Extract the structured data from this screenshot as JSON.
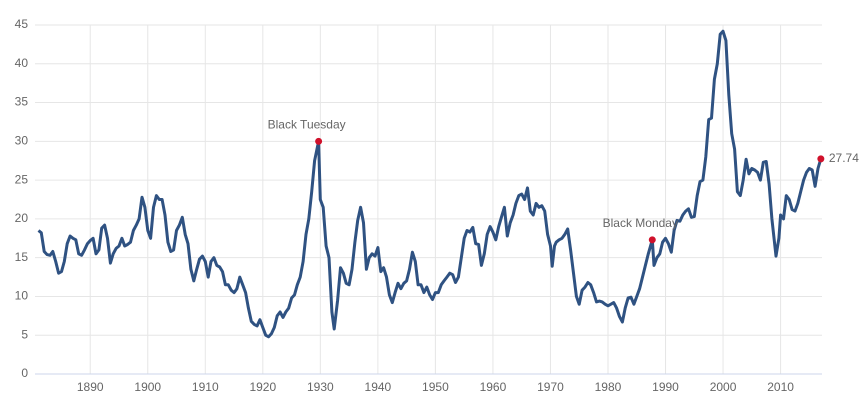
{
  "chart_data": {
    "type": "line",
    "color": "#2f5282",
    "marker_color": "#d0112b",
    "grid": true,
    "xlim": [
      1880.4,
      2017.2
    ],
    "ylim": [
      0,
      45
    ],
    "xticks": [
      1890,
      1900,
      1910,
      1920,
      1930,
      1940,
      1950,
      1960,
      1970,
      1980,
      1990,
      2000,
      2010
    ],
    "yticks": [
      0,
      5,
      10,
      15,
      20,
      25,
      30,
      35,
      40,
      45
    ],
    "x": [
      1881,
      1881.5,
      1882,
      1882.5,
      1883,
      1883.5,
      1884,
      1884.5,
      1885,
      1885.5,
      1886,
      1886.5,
      1887,
      1887.5,
      1888,
      1888.5,
      1889,
      1889.5,
      1890,
      1890.5,
      1891,
      1891.5,
      1892,
      1892.5,
      1893,
      1893.5,
      1894,
      1894.5,
      1895,
      1895.5,
      1896,
      1896.5,
      1897,
      1897.5,
      1898,
      1898.5,
      1899,
      1899.5,
      1900,
      1900.5,
      1901,
      1901.5,
      1902,
      1902.5,
      1903,
      1903.5,
      1904,
      1904.5,
      1905,
      1905.5,
      1906,
      1906.5,
      1907,
      1907.5,
      1908,
      1908.5,
      1909,
      1909.5,
      1910,
      1910.5,
      1911,
      1911.5,
      1912,
      1912.5,
      1913,
      1913.5,
      1914,
      1914.5,
      1915,
      1915.5,
      1916,
      1916.5,
      1917,
      1917.5,
      1918,
      1918.5,
      1919,
      1919.5,
      1920,
      1920.5,
      1921,
      1921.5,
      1922,
      1922.5,
      1923,
      1923.5,
      1924,
      1924.5,
      1925,
      1925.5,
      1926,
      1926.5,
      1927,
      1927.5,
      1928,
      1928.5,
      1929,
      1929.7,
      1930,
      1930.5,
      1931,
      1931.5,
      1932,
      1932.4,
      1933,
      1933.5,
      1934,
      1934.5,
      1935,
      1935.5,
      1936,
      1936.5,
      1937,
      1937.5,
      1938,
      1938.5,
      1939,
      1939.5,
      1940,
      1940.5,
      1941,
      1941.5,
      1942,
      1942.5,
      1943,
      1943.5,
      1944,
      1944.5,
      1945,
      1945.5,
      1946,
      1946.5,
      1947,
      1947.5,
      1948,
      1948.5,
      1949,
      1949.5,
      1950,
      1950.5,
      1951,
      1951.5,
      1952,
      1952.5,
      1953,
      1953.5,
      1954,
      1954.5,
      1955,
      1955.5,
      1956,
      1956.5,
      1957,
      1957.5,
      1958,
      1958.5,
      1959,
      1959.5,
      1960,
      1960.5,
      1961,
      1961.5,
      1962,
      1962.5,
      1963,
      1963.5,
      1964,
      1964.5,
      1965,
      1965.5,
      1966,
      1966.5,
      1967,
      1967.5,
      1968,
      1968.5,
      1969,
      1969.5,
      1970,
      1970.3,
      1970.7,
      1971,
      1971.5,
      1972,
      1972.5,
      1973,
      1973.5,
      1974,
      1974.5,
      1975,
      1975.5,
      1976,
      1976.5,
      1977,
      1977.5,
      1978,
      1978.5,
      1979,
      1979.5,
      1980,
      1980.5,
      1981,
      1981.5,
      1982,
      1982.5,
      1983,
      1983.5,
      1984,
      1984.5,
      1985,
      1985.5,
      1986,
      1986.5,
      1987,
      1987.7,
      1988,
      1988.5,
      1989,
      1989.5,
      1990,
      1990.5,
      1991,
      1991.5,
      1992,
      1992.5,
      1993,
      1993.5,
      1994,
      1994.5,
      1995,
      1995.5,
      1996,
      1996.5,
      1997,
      1997.5,
      1998,
      1998.5,
      1999,
      1999.5,
      2000,
      2000.5,
      2001,
      2001.5,
      2002,
      2002.5,
      2003,
      2003.5,
      2004,
      2004.5,
      2005,
      2005.5,
      2006,
      2006.5,
      2007,
      2007.5,
      2008,
      2008.5,
      2009.2,
      2009.7,
      2010,
      2010.5,
      2011,
      2011.5,
      2012,
      2012.5,
      2013,
      2013.5,
      2014,
      2014.5,
      2015,
      2015.5,
      2016,
      2016.5,
      2017
    ],
    "values": [
      18.5,
      18.2,
      15.8,
      15.4,
      15.3,
      15.8,
      14.5,
      13.0,
      13.2,
      14.5,
      16.8,
      17.8,
      17.5,
      17.3,
      15.5,
      15.3,
      16.0,
      16.8,
      17.2,
      17.5,
      15.5,
      16.0,
      18.8,
      19.2,
      17.5,
      14.3,
      15.5,
      16.2,
      16.5,
      17.5,
      16.5,
      16.7,
      17.0,
      18.5,
      19.2,
      20.0,
      22.8,
      21.5,
      18.5,
      17.5,
      21.5,
      23.0,
      22.5,
      22.5,
      20.5,
      17.0,
      15.8,
      16.0,
      18.5,
      19.2,
      20.2,
      18.0,
      16.8,
      13.5,
      12.0,
      13.5,
      14.8,
      15.2,
      14.5,
      12.5,
      14.5,
      15.0,
      14.0,
      13.8,
      13.2,
      11.5,
      11.5,
      10.8,
      10.5,
      11.0,
      12.5,
      11.5,
      10.5,
      8.5,
      6.8,
      6.4,
      6.2,
      7.0,
      6.0,
      5.0,
      4.8,
      5.2,
      6.0,
      7.5,
      8.0,
      7.3,
      8.0,
      8.5,
      9.8,
      10.2,
      11.5,
      12.5,
      14.5,
      18.0,
      20.0,
      23.5,
      27.5,
      30.0,
      22.5,
      21.5,
      16.5,
      15.0,
      8.0,
      5.8,
      9.5,
      13.7,
      13.0,
      11.7,
      11.5,
      13.5,
      17.0,
      19.8,
      21.5,
      19.5,
      13.5,
      15.0,
      15.5,
      15.2,
      16.3,
      13.2,
      13.7,
      12.5,
      10.2,
      9.2,
      10.5,
      11.7,
      11.0,
      11.7,
      12.0,
      13.5,
      15.7,
      14.5,
      11.5,
      11.5,
      10.5,
      11.2,
      10.2,
      9.6,
      10.5,
      10.5,
      11.5,
      12.0,
      12.5,
      13.0,
      12.8,
      11.8,
      12.5,
      15.0,
      17.5,
      18.5,
      18.3,
      18.9,
      16.8,
      16.7,
      14.0,
      15.5,
      18.0,
      19.0,
      18.3,
      17.3,
      19.0,
      20.3,
      21.5,
      17.8,
      19.5,
      20.5,
      22.0,
      23.0,
      23.2,
      22.5,
      24.0,
      21.0,
      20.5,
      22.0,
      21.5,
      21.7,
      21.0,
      18.0,
      16.5,
      13.9,
      16.5,
      17.0,
      17.3,
      17.5,
      18.0,
      18.7,
      16.0,
      13.0,
      10.0,
      9.0,
      10.8,
      11.2,
      11.8,
      11.5,
      10.5,
      9.3,
      9.4,
      9.3,
      9.0,
      8.8,
      9.0,
      9.2,
      8.5,
      7.4,
      6.7,
      8.5,
      9.8,
      9.9,
      9.0,
      10.0,
      11.0,
      12.5,
      14.0,
      15.5,
      17.3,
      14.0,
      15.0,
      15.5,
      17.0,
      17.5,
      16.8,
      15.7,
      18.5,
      19.8,
      19.7,
      20.5,
      21.0,
      21.3,
      20.2,
      20.3,
      23.0,
      24.8,
      25.0,
      28.0,
      32.8,
      33.0,
      38.0,
      40.0,
      43.8,
      44.2,
      43.0,
      36.0,
      31.0,
      29.0,
      23.5,
      23.0,
      25.0,
      27.7,
      25.8,
      26.5,
      26.3,
      26.0,
      25.0,
      27.3,
      27.4,
      24.5,
      20.0,
      15.2,
      17.5,
      20.5,
      20.0,
      23.0,
      22.5,
      21.2,
      21.0,
      22.0,
      23.5,
      25.0,
      26.0,
      26.5,
      26.3,
      24.2,
      26.5,
      27.74
    ],
    "annotations": [
      {
        "label": "Black Tuesday",
        "x": 1929.7,
        "y": 30.0
      },
      {
        "label": "Black Monday",
        "x": 1987.7,
        "y": 17.3
      }
    ]
  }
}
